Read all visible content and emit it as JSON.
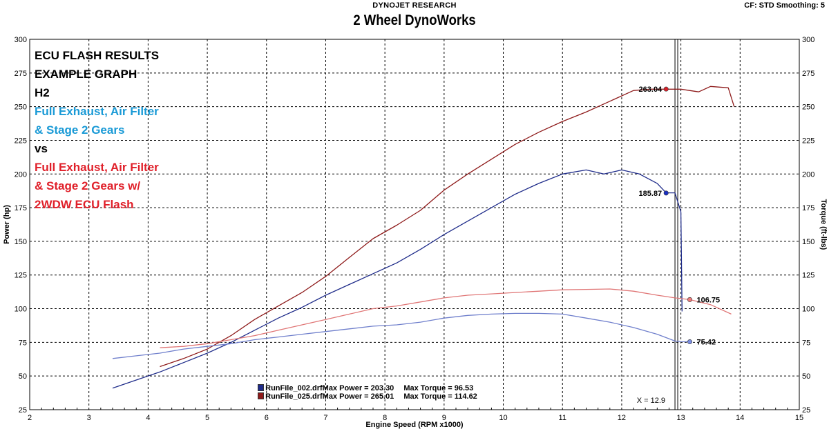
{
  "header": {
    "publisher": "DYNOJET RESEARCH",
    "title": "2 Wheel DynoWorks",
    "settings": "CF: STD  Smoothing: 5"
  },
  "annotations": {
    "lines": [
      {
        "text": "ECU FLASH RESULTS",
        "color": "#000000"
      },
      {
        "text": "EXAMPLE GRAPH",
        "color": "#000000"
      },
      {
        "text": "H2",
        "color": "#000000"
      },
      {
        "text": "Full Exhaust, Air Filter",
        "color": "#1a9ad6"
      },
      {
        "text": "& Stage 2 Gears",
        "color": "#1a9ad6"
      },
      {
        "text": "vs",
        "color": "#000000"
      },
      {
        "text": "Full Exhaust, Air Filter",
        "color": "#e0202a"
      },
      {
        "text": "& Stage 2 Gears w/",
        "color": "#e0202a"
      },
      {
        "text": "2WDW ECU Flash",
        "color": "#e0202a"
      }
    ]
  },
  "legend": [
    {
      "file": "RunFile_002.drf",
      "max_power": "Max Power = 203.30",
      "max_torque": "Max Torque = 96.53",
      "color": "#1f2c8a"
    },
    {
      "file": "RunFile_025.drf",
      "max_power": "Max Power = 265.01",
      "max_torque": "Max Torque = 114.62",
      "color": "#8e1a1a"
    }
  ],
  "chart_data": {
    "type": "line",
    "xlabel": "Engine Speed (RPM x1000)",
    "ylabel": "Power (hp)",
    "ylabel_right": "Torque (ft-lbs)",
    "xlim": [
      2,
      15
    ],
    "ylim": [
      25,
      300
    ],
    "x_ticks": [
      2,
      3,
      4,
      5,
      6,
      7,
      8,
      9,
      10,
      11,
      12,
      13,
      14,
      15
    ],
    "y_ticks": [
      25,
      50,
      75,
      100,
      125,
      150,
      175,
      200,
      225,
      250,
      275,
      300
    ],
    "grid": true,
    "cursor": {
      "x": 12.9,
      "label": "X = 12.9"
    },
    "series": [
      {
        "name": "RunFile_002.drf Power",
        "color": "#1f2c8a",
        "x": [
          3.4,
          3.8,
          4.2,
          4.6,
          5.0,
          5.4,
          5.8,
          6.2,
          6.6,
          7.0,
          7.4,
          7.8,
          8.2,
          8.6,
          9.0,
          9.4,
          9.8,
          10.2,
          10.6,
          11.0,
          11.4,
          11.7,
          12.0,
          12.3,
          12.6,
          12.75,
          12.9,
          13.0,
          13.02
        ],
        "y": [
          41,
          47,
          53,
          60,
          67,
          75,
          84,
          93,
          101,
          110,
          118,
          126,
          134,
          144,
          155,
          165,
          175,
          185,
          193,
          200,
          203,
          200,
          203,
          200,
          193,
          186,
          186,
          172,
          98
        ]
      },
      {
        "name": "RunFile_025.drf Power",
        "color": "#8e1a1a",
        "x": [
          4.2,
          4.6,
          5.0,
          5.4,
          5.8,
          6.2,
          6.6,
          7.0,
          7.4,
          7.8,
          8.2,
          8.6,
          9.0,
          9.4,
          9.8,
          10.2,
          10.6,
          11.0,
          11.4,
          11.8,
          12.2,
          12.5,
          12.75,
          13.0,
          13.3,
          13.5,
          13.8,
          13.9
        ],
        "y": [
          57,
          63,
          70,
          80,
          92,
          102,
          112,
          124,
          138,
          152,
          162,
          173,
          188,
          200,
          211,
          222,
          231,
          239,
          246,
          254,
          262,
          263,
          263,
          263,
          261,
          265,
          264,
          250
        ]
      },
      {
        "name": "RunFile_002.drf Torque",
        "color": "#6f7fcc",
        "x": [
          3.4,
          3.8,
          4.2,
          4.6,
          5.0,
          5.4,
          5.8,
          6.2,
          6.6,
          7.0,
          7.4,
          7.8,
          8.2,
          8.6,
          9.0,
          9.4,
          9.8,
          10.2,
          10.6,
          11.0,
          11.4,
          11.8,
          12.2,
          12.6,
          12.9,
          13.0,
          13.15
        ],
        "y": [
          63,
          65,
          67,
          70,
          72,
          74,
          77,
          79,
          81,
          83,
          85,
          87,
          88,
          90,
          93,
          95,
          96,
          96.5,
          96.5,
          96,
          93,
          90,
          86,
          81,
          76,
          75.5,
          75.42
        ]
      },
      {
        "name": "RunFile_025.drf Torque",
        "color": "#e07676",
        "x": [
          4.2,
          4.6,
          5.0,
          5.4,
          5.8,
          6.2,
          6.6,
          7.0,
          7.4,
          7.8,
          8.2,
          8.6,
          9.0,
          9.4,
          9.8,
          10.2,
          10.6,
          11.0,
          11.4,
          11.8,
          12.2,
          12.6,
          12.9,
          13.15,
          13.5,
          13.85
        ],
        "y": [
          71,
          72,
          74,
          77,
          80,
          84,
          88,
          92,
          96,
          100,
          102,
          105,
          108,
          110,
          111,
          112,
          113,
          114,
          114.3,
          114.6,
          113,
          110,
          108,
          106.75,
          103,
          96
        ]
      }
    ],
    "markers": [
      {
        "label": "263.04",
        "x": 12.75,
        "y": 263.04,
        "color": "#d8202a",
        "side": "left"
      },
      {
        "label": "185.87",
        "x": 12.75,
        "y": 185.87,
        "color": "#1a2fc4",
        "side": "left"
      },
      {
        "label": "106.75",
        "x": 13.15,
        "y": 106.75,
        "color": "#f07b7b",
        "side": "right"
      },
      {
        "label": "75.42",
        "x": 13.15,
        "y": 75.42,
        "color": "#7b8de0",
        "side": "right"
      }
    ]
  }
}
